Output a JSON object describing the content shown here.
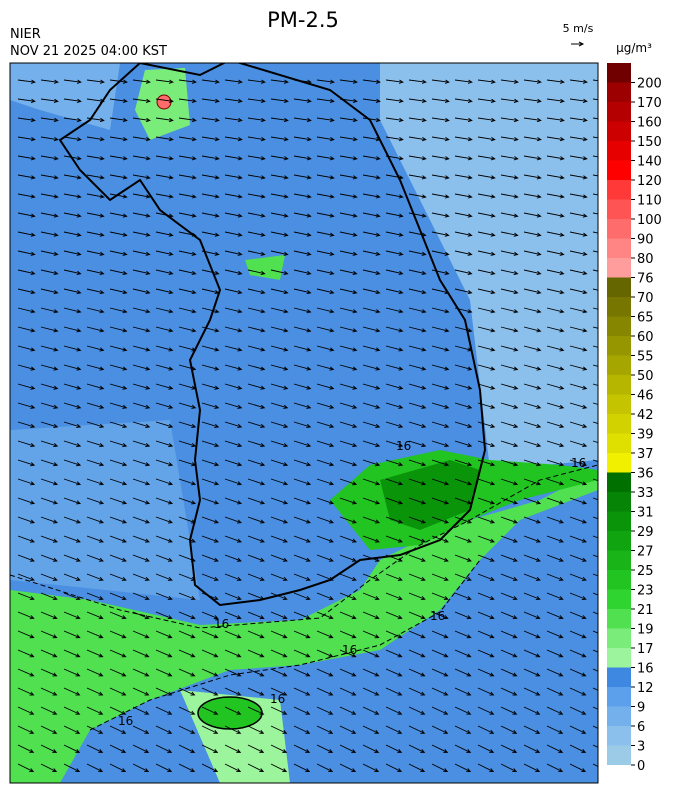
{
  "header": {
    "title": "PM-2.5",
    "agency": "NIER",
    "datetime": "NOV 21 2025 04:00 KST"
  },
  "wind_scale": {
    "label": "5 m/s"
  },
  "map": {
    "contour_label": "16"
  },
  "colorbar": {
    "unit": "μg/m³",
    "levels": [
      0,
      3,
      6,
      9,
      12,
      16,
      17,
      19,
      21,
      23,
      25,
      27,
      29,
      31,
      33,
      36,
      37,
      39,
      42,
      46,
      50,
      55,
      60,
      65,
      70,
      76,
      80,
      90,
      100,
      110,
      120,
      140,
      150,
      160,
      170,
      200
    ],
    "colors": [
      "#9ccbe8",
      "#8cc0ec",
      "#74b0ec",
      "#5c9fea",
      "#3f88e2",
      "#9cf59c",
      "#7aec7a",
      "#50e050",
      "#30d430",
      "#22c422",
      "#18b418",
      "#10a410",
      "#0a940a",
      "#068406",
      "#007000",
      "#f0f000",
      "#e0e000",
      "#d2d200",
      "#c4c400",
      "#b6b600",
      "#a6a600",
      "#969600",
      "#868600",
      "#767600",
      "#666600",
      "#ff9c9c",
      "#ff8484",
      "#ff6c6c",
      "#ff5454",
      "#ff3838",
      "#ff0000",
      "#e60000",
      "#cc0000",
      "#b40000",
      "#9c0000",
      "#700000"
    ]
  }
}
